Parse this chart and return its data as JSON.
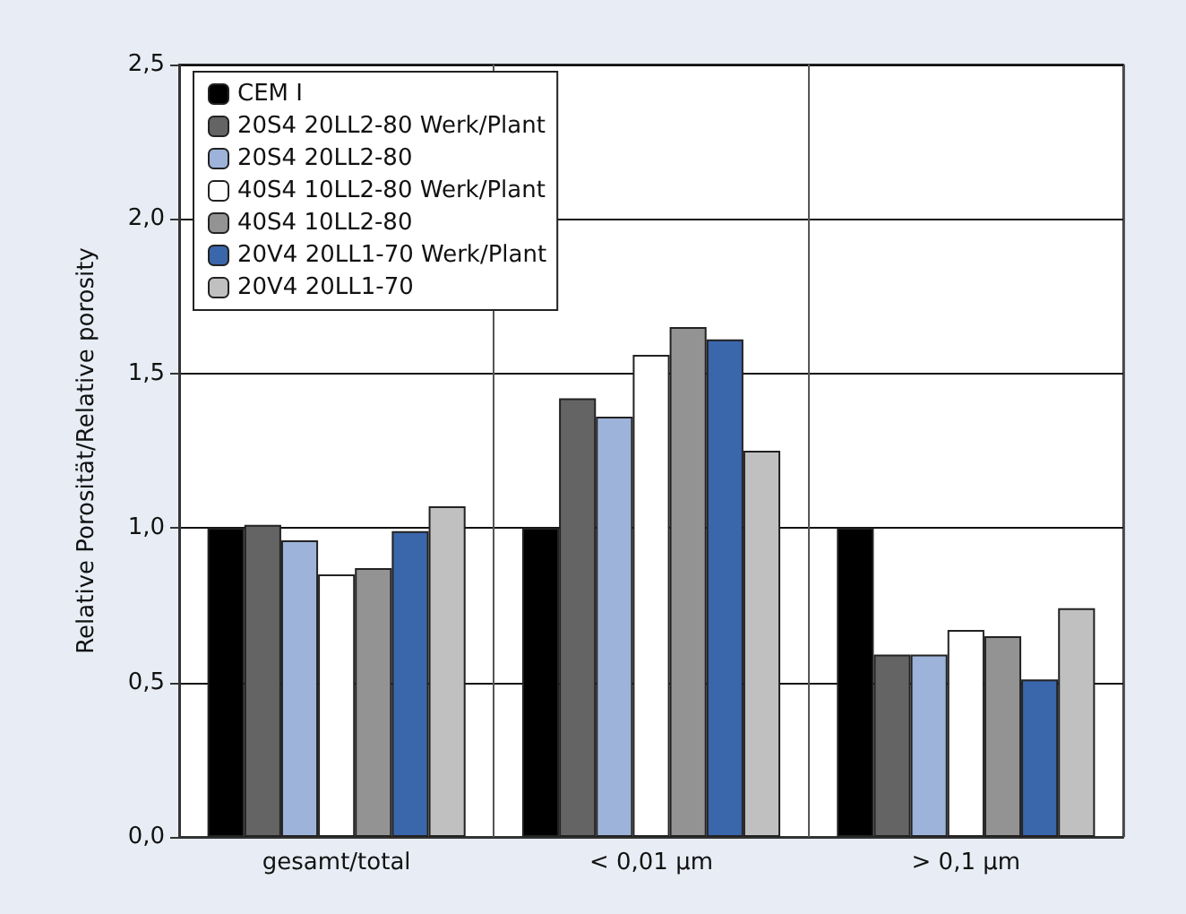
{
  "chart_data": {
    "type": "bar",
    "ylabel": "Relative Porosität/Relative porosity",
    "categories": [
      "gesamt/total",
      "< 0,01 µm",
      "> 0,1 µm"
    ],
    "series": [
      {
        "name": "CEM I",
        "color": "#000000",
        "values": [
          1.0,
          1.0,
          1.0
        ]
      },
      {
        "name": "20S4 20LL2-80 Werk/Plant",
        "color": "#646464",
        "values": [
          1.01,
          1.42,
          0.59
        ]
      },
      {
        "name": "20S4 20LL2-80",
        "color": "#9db3d9",
        "values": [
          0.96,
          1.36,
          0.59
        ]
      },
      {
        "name": "40S4 10LL2-80 Werk/Plant",
        "color": "#ffffff",
        "values": [
          0.85,
          1.56,
          0.67
        ]
      },
      {
        "name": "40S4 10LL2-80",
        "color": "#939393",
        "values": [
          0.87,
          1.65,
          0.65
        ]
      },
      {
        "name": "20V4 20LL1-70 Werk/Plant",
        "color": "#3a66ab",
        "values": [
          0.99,
          1.61,
          0.51
        ]
      },
      {
        "name": "20V4 20LL1-70",
        "color": "#c0c0c0",
        "values": [
          1.07,
          1.25,
          0.74
        ]
      }
    ],
    "ylim": [
      0,
      2.5
    ],
    "yticks": [
      {
        "value": 0,
        "label": "0,0"
      },
      {
        "value": 0.5,
        "label": "0,5"
      },
      {
        "value": 1,
        "label": "1,0"
      },
      {
        "value": 1.5,
        "label": "1,5"
      },
      {
        "value": 2,
        "label": "2,0"
      },
      {
        "value": 2.5,
        "label": "2,5"
      }
    ],
    "grid": true,
    "legend": "top left"
  }
}
